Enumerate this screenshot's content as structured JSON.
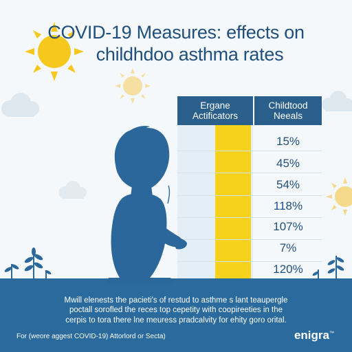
{
  "title": {
    "line1": "COVID-19 Measures: effects on",
    "line2": "childhdoo asthma rates"
  },
  "table": {
    "col1_header_line1": "Ergane",
    "col1_header_line2": "Actificators",
    "col2_header_line1": "Childtood",
    "col2_header_line2": "Neeals",
    "values": [
      "15%",
      "45%",
      "54%",
      "118%",
      "107%",
      "7%",
      "120%"
    ]
  },
  "footer": {
    "line1": "Mwill elenests the pacieti's of restud to asthme s lant teaupergle",
    "line2": "poctall sorofled the reces top cepetity with coopireeties in the",
    "line3": "cerpis to tora there lne meuress pradcalvity for ehity goro orital.",
    "bottom_left": "For (weore aggest COVID-19) Attorlord or Secta)",
    "brand": "enigra",
    "brand_mark": "™"
  },
  "colors": {
    "title": "#1f4f7d",
    "header_bg": "#2a5f8c",
    "highlight": "#f7d21c",
    "ground": "#2a6a9c",
    "silhouette": "#2c679b"
  }
}
